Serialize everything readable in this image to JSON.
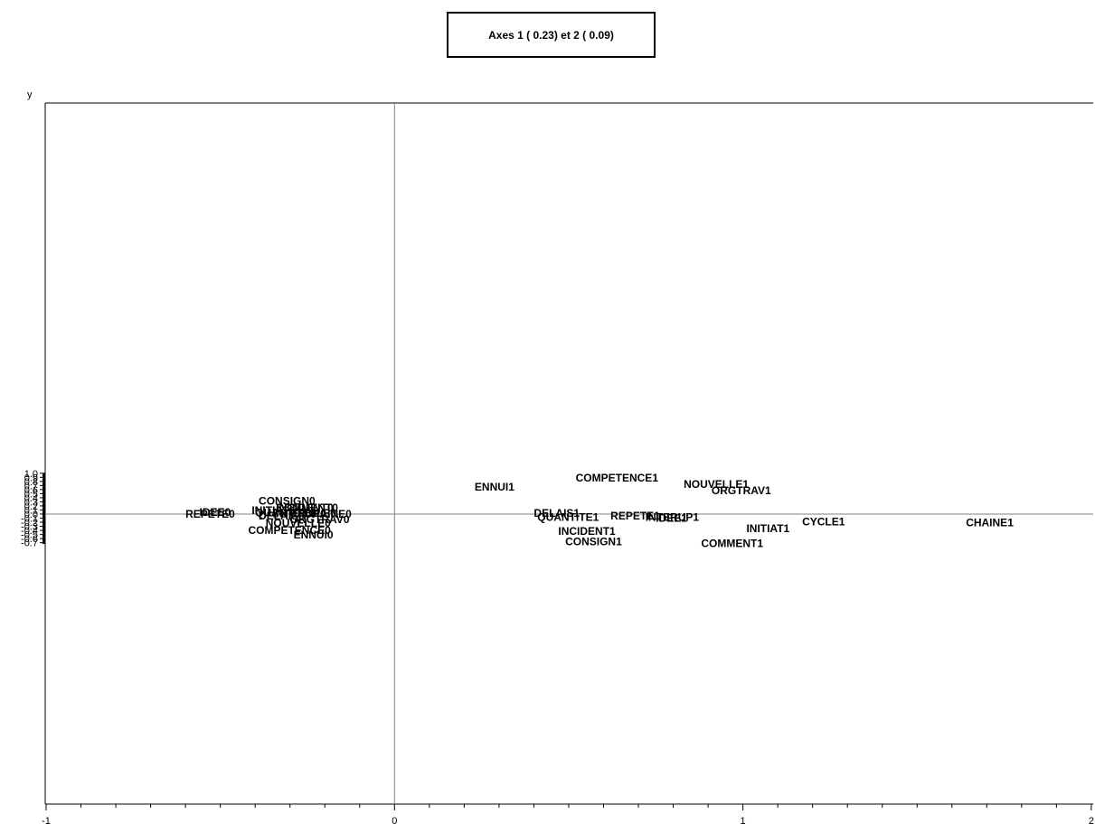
{
  "chart_data": {
    "type": "scatter",
    "title": "Axes 1 ( 0.23) et 2 ( 0.09)",
    "xlabel": "",
    "ylabel": "y",
    "xlim": [
      -1,
      2
    ],
    "ylim": [
      -0.72,
      1.0
    ],
    "x_ticks": [
      -1,
      0,
      1,
      2
    ],
    "y_ticks": [
      1.0,
      0.9,
      0.8,
      0.7,
      0.6,
      0.5,
      0.4,
      0.3,
      0.2,
      0.1,
      0.0,
      -0.1,
      -0.2,
      -0.3,
      -0.4,
      -0.5,
      -0.6,
      -0.7
    ],
    "y_tick_labels": [
      "1.0",
      "0.9",
      "0.8",
      "0.7",
      "0.6",
      "0.5",
      "0.4",
      "0.3",
      "0.2",
      "0.1",
      "0.0",
      "-0.1",
      "-0.2",
      "-0.3",
      "-0.4",
      "-0.5",
      "-0.6",
      "-0.7"
    ],
    "x_tick_labels": [
      "-1",
      "0",
      "1",
      "2"
    ],
    "reference_lines": {
      "x": 0,
      "y": 0
    },
    "grid": false,
    "points": [
      {
        "label": "COMPETENCE1",
        "x": 0.52,
        "y": 0.89
      },
      {
        "label": "NOUVELLE1",
        "x": 0.83,
        "y": 0.73
      },
      {
        "label": "ENNUI1",
        "x": 0.23,
        "y": 0.66
      },
      {
        "label": "ORGTRAV1",
        "x": 0.91,
        "y": 0.58
      },
      {
        "label": "CONSIGN0",
        "x": -0.39,
        "y": 0.32
      },
      {
        "label": "INCIDENT0",
        "x": -0.34,
        "y": 0.16
      },
      {
        "label": "COMMENT0",
        "x": -0.34,
        "y": 0.15
      },
      {
        "label": "INITIAT0",
        "x": -0.41,
        "y": 0.09
      },
      {
        "label": "IDEE0",
        "x": -0.56,
        "y": 0.04
      },
      {
        "label": "QUANTITE0",
        "x": -0.4,
        "y": 0.03
      },
      {
        "label": "CYCLE0",
        "x": -0.29,
        "y": 0.02
      },
      {
        "label": "INTERUP0",
        "x": -0.35,
        "y": 0.01
      },
      {
        "label": "CHAINE0",
        "x": -0.26,
        "y": 0.0
      },
      {
        "label": "REPETE0",
        "x": -0.6,
        "y": 0.0
      },
      {
        "label": "DELAIS0",
        "x": -0.39,
        "y": -0.04
      },
      {
        "label": "ORGTRAV0",
        "x": -0.3,
        "y": -0.13
      },
      {
        "label": "NOUVELLE0",
        "x": -0.37,
        "y": -0.22
      },
      {
        "label": "COMPETENCE0",
        "x": -0.42,
        "y": -0.4
      },
      {
        "label": "ENNUI0",
        "x": -0.29,
        "y": -0.51
      },
      {
        "label": "DELAIS1",
        "x": 0.4,
        "y": 0.02
      },
      {
        "label": "REPETE1",
        "x": 0.62,
        "y": -0.04
      },
      {
        "label": "QUANTITE1",
        "x": 0.41,
        "y": -0.08
      },
      {
        "label": "INTERUP1",
        "x": 0.72,
        "y": -0.08
      },
      {
        "label": "IDEE1",
        "x": 0.75,
        "y": -0.1
      },
      {
        "label": "CYCLE1",
        "x": 1.17,
        "y": -0.19
      },
      {
        "label": "CHAINE1",
        "x": 1.64,
        "y": -0.21
      },
      {
        "label": "INITIAT1",
        "x": 1.01,
        "y": -0.35
      },
      {
        "label": "INCIDENT1",
        "x": 0.47,
        "y": -0.42
      },
      {
        "label": "CONSIGN1",
        "x": 0.49,
        "y": -0.68
      },
      {
        "label": "COMMENT1",
        "x": 0.88,
        "y": -0.72
      }
    ]
  }
}
